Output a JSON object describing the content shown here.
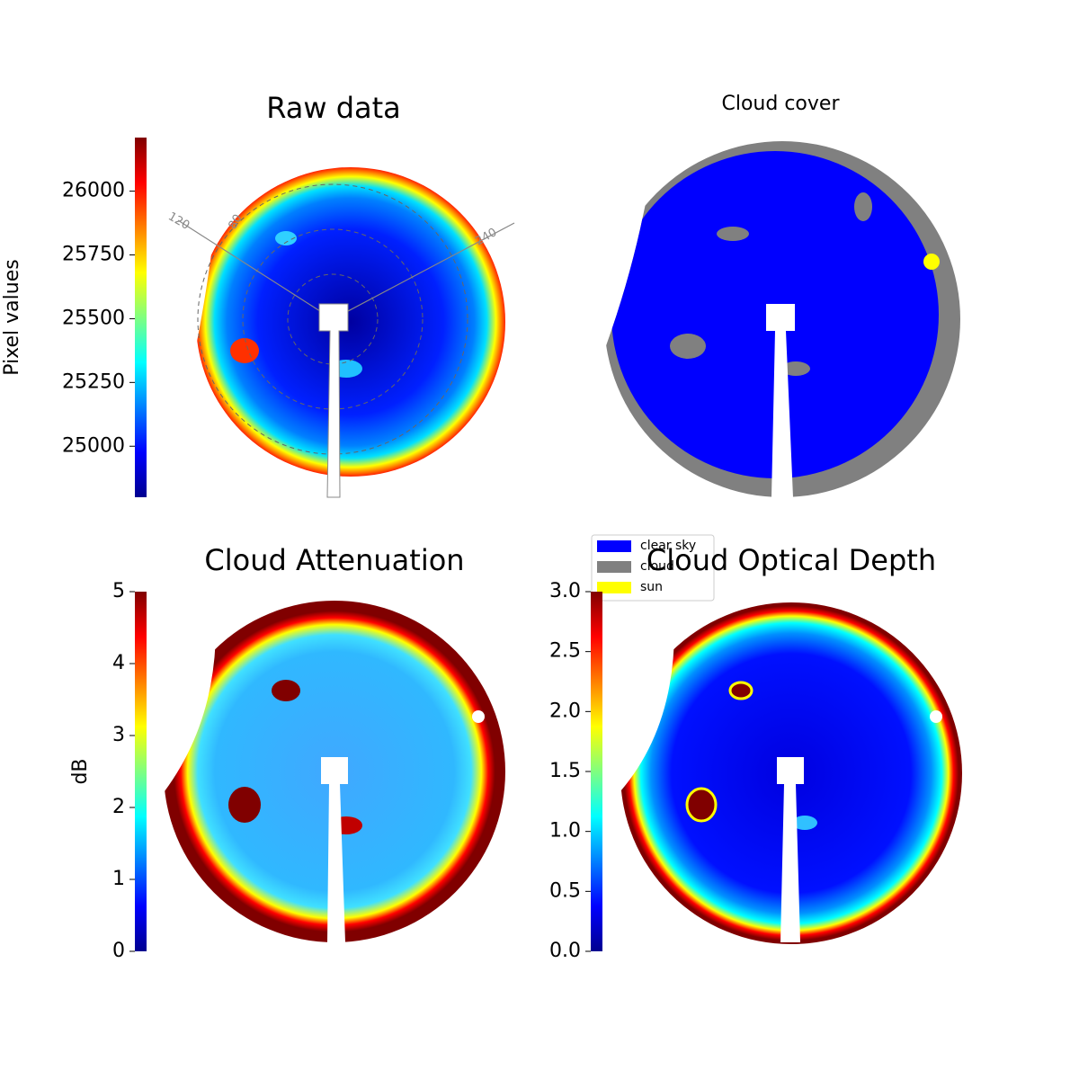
{
  "chart_data": [
    {
      "type": "image",
      "title": "Raw data",
      "annotations": [
        "120",
        "80",
        "240"
      ],
      "colorbar": {
        "label": "Pixel values",
        "lim": [
          24800,
          26210
        ],
        "ticks": [
          25000,
          25250,
          25500,
          25750,
          26000
        ]
      }
    },
    {
      "type": "image",
      "title": "Cloud cover",
      "legend": [
        {
          "name": "clear sky",
          "color": "#0000ff"
        },
        {
          "name": "cloud",
          "color": "#808080"
        },
        {
          "name": "sun",
          "color": "#ffff00"
        }
      ]
    },
    {
      "type": "image",
      "title": "Cloud Attenuation",
      "colorbar": {
        "label": "dB",
        "lim": [
          0,
          5
        ],
        "ticks": [
          0,
          1,
          2,
          3,
          4,
          5
        ]
      }
    },
    {
      "type": "image",
      "title": "Cloud Optical Depth",
      "colorbar": {
        "lim": [
          0,
          3
        ],
        "ticks": [
          {
            "value": 0,
            "label": "0.0"
          },
          {
            "value": 0.5,
            "label": "0.5"
          },
          {
            "value": 1,
            "label": "1.0"
          },
          {
            "value": 1.5,
            "label": "1.5"
          },
          {
            "value": 2,
            "label": "2.0"
          },
          {
            "value": 2.5,
            "label": "2.5"
          },
          {
            "value": 3,
            "label": "3.0"
          }
        ]
      }
    }
  ]
}
